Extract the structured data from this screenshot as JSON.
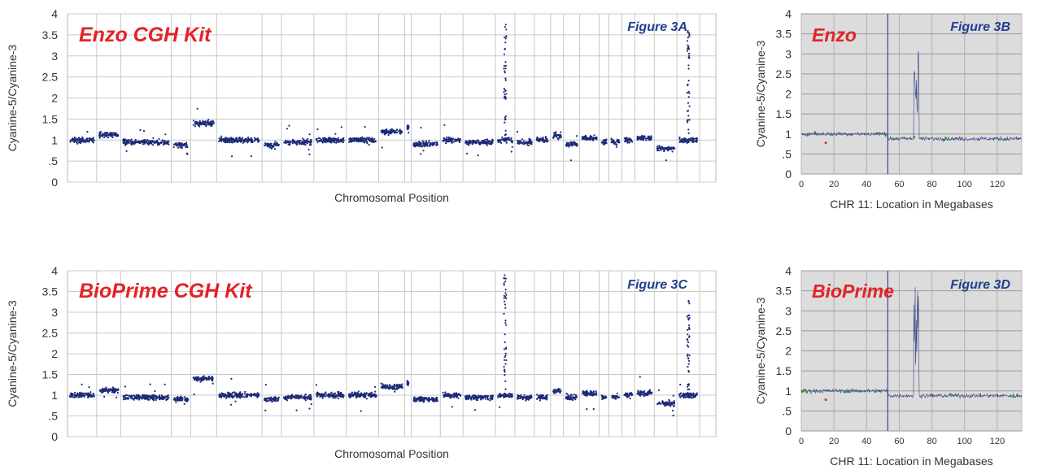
{
  "colors": {
    "points": "#1b2a78",
    "panel_title": "#e32227",
    "figure_label": "#1f3f8f",
    "grid": "#c8c8c8",
    "zoom_bg": "#dcdcdc",
    "axis_text": "#333333",
    "green_point": "#2e9a3a",
    "red_point": "#cc3333"
  },
  "chart_data": [
    {
      "id": "3A",
      "type": "scatter",
      "title": "Enzo CGH Kit",
      "figure_label": "Figure 3A",
      "xlabel": "Chromosomal Position",
      "ylabel": "Cyanine-5/Cyanine-3",
      "ylim": [
        0,
        4
      ],
      "yticks": [
        0,
        0.5,
        1,
        1.5,
        2,
        2.5,
        3,
        3.5,
        4
      ],
      "ytick_labels": [
        "0",
        ".5",
        "1",
        "1.5",
        "2",
        "2.5",
        "3",
        "3.5",
        "4"
      ],
      "grid": true,
      "chromosome_segments": [
        {
          "index": 1,
          "mean": 1.0
        },
        {
          "index": 2,
          "mean": 1.12
        },
        {
          "index": 3,
          "mean": 0.95
        },
        {
          "index": 4,
          "mean": 0.88
        },
        {
          "index": 5,
          "mean": 1.4
        },
        {
          "index": 6,
          "mean": 1.0
        },
        {
          "index": 7,
          "mean": 0.87
        },
        {
          "index": 8,
          "mean": 0.95
        },
        {
          "index": 9,
          "mean": 1.0
        },
        {
          "index": 10,
          "mean": 1.0
        },
        {
          "index": 11,
          "mean": 1.2
        },
        {
          "index": 12,
          "mean": 1.3
        },
        {
          "index": 13,
          "mean": 0.9
        },
        {
          "index": 14,
          "mean": 1.0
        },
        {
          "index": 15,
          "mean": 0.95
        },
        {
          "index": 16,
          "mean": 1.0
        },
        {
          "index": 17,
          "mean": 0.95
        },
        {
          "index": 18,
          "mean": 1.0
        },
        {
          "index": 19,
          "mean": 1.1
        },
        {
          "index": 20,
          "mean": 0.9
        },
        {
          "index": 21,
          "mean": 1.05
        },
        {
          "index": 22,
          "mean": 0.95
        },
        {
          "index": 23,
          "mean": 0.95
        },
        {
          "index": 24,
          "mean": 1.0
        },
        {
          "index": 25,
          "mean": 1.05
        },
        {
          "index": 26,
          "mean": 0.8
        },
        {
          "index": 27,
          "mean": 1.0
        }
      ],
      "amplified_peaks": [
        {
          "segment": 16,
          "max": 3.8
        },
        {
          "segment": 27,
          "max": 3.6
        }
      ]
    },
    {
      "id": "3B",
      "type": "scatter",
      "title": "Enzo",
      "figure_label": "Figure 3B",
      "xlabel": "CHR 11: Location in Megabases",
      "ylabel": "Cyanine-5/Cyanine-3",
      "ylim": [
        0,
        4
      ],
      "xlim": [
        0,
        135
      ],
      "xticks": [
        0,
        20,
        40,
        60,
        80,
        100,
        120
      ],
      "yticks": [
        0,
        0.5,
        1,
        1.5,
        2,
        2.5,
        3,
        3.5,
        4
      ],
      "ytick_labels": [
        "0",
        ".5",
        "1",
        "1.5",
        "2",
        "2.5",
        "3",
        "3.5",
        "4"
      ],
      "grid": true,
      "baseline_left": 1.0,
      "baseline_right": 0.88,
      "centromere_mb": 53,
      "amplicon": {
        "start_mb": 69,
        "end_mb": 72,
        "peak": 3.5
      }
    },
    {
      "id": "3C",
      "type": "scatter",
      "title": "BioPrime CGH Kit",
      "figure_label": "Figure 3C",
      "xlabel": "Chromosomal Position",
      "ylabel": "Cyanine-5/Cyanine-3",
      "ylim": [
        0,
        4
      ],
      "yticks": [
        0,
        0.5,
        1,
        1.5,
        2,
        2.5,
        3,
        3.5,
        4
      ],
      "ytick_labels": [
        "0",
        ".5",
        "1",
        "1.5",
        "2",
        "2.5",
        "3",
        "3.5",
        "4"
      ],
      "grid": true,
      "chromosome_segments": [
        {
          "index": 1,
          "mean": 1.0
        },
        {
          "index": 2,
          "mean": 1.12
        },
        {
          "index": 3,
          "mean": 0.95
        },
        {
          "index": 4,
          "mean": 0.9
        },
        {
          "index": 5,
          "mean": 1.4
        },
        {
          "index": 6,
          "mean": 1.0
        },
        {
          "index": 7,
          "mean": 0.9
        },
        {
          "index": 8,
          "mean": 0.95
        },
        {
          "index": 9,
          "mean": 1.0
        },
        {
          "index": 10,
          "mean": 1.0
        },
        {
          "index": 11,
          "mean": 1.2
        },
        {
          "index": 12,
          "mean": 1.3
        },
        {
          "index": 13,
          "mean": 0.9
        },
        {
          "index": 14,
          "mean": 1.0
        },
        {
          "index": 15,
          "mean": 0.95
        },
        {
          "index": 16,
          "mean": 1.0
        },
        {
          "index": 17,
          "mean": 0.95
        },
        {
          "index": 18,
          "mean": 0.95
        },
        {
          "index": 19,
          "mean": 1.1
        },
        {
          "index": 20,
          "mean": 0.95
        },
        {
          "index": 21,
          "mean": 1.05
        },
        {
          "index": 22,
          "mean": 0.95
        },
        {
          "index": 23,
          "mean": 0.95
        },
        {
          "index": 24,
          "mean": 1.0
        },
        {
          "index": 25,
          "mean": 1.05
        },
        {
          "index": 26,
          "mean": 0.8
        },
        {
          "index": 27,
          "mean": 1.0
        }
      ],
      "amplified_peaks": [
        {
          "segment": 16,
          "max": 3.9
        },
        {
          "segment": 27,
          "max": 3.3
        }
      ]
    },
    {
      "id": "3D",
      "type": "scatter",
      "title": "BioPrime",
      "figure_label": "Figure 3D",
      "xlabel": "CHR 11: Location in Megabases",
      "ylabel": "Cyanine-5/Cyanine-3",
      "ylim": [
        0,
        4
      ],
      "xlim": [
        0,
        135
      ],
      "xticks": [
        0,
        20,
        40,
        60,
        80,
        100,
        120
      ],
      "yticks": [
        0,
        0.5,
        1,
        1.5,
        2,
        2.5,
        3,
        3.5,
        4
      ],
      "ytick_labels": [
        "0",
        ".5",
        "1",
        "1.5",
        "2",
        "2.5",
        "3",
        "3.5",
        "4"
      ],
      "grid": true,
      "baseline_left": 1.0,
      "baseline_right": 0.88,
      "centromere_mb": 53,
      "amplicon": {
        "start_mb": 69,
        "end_mb": 72,
        "peak": 3.6
      }
    }
  ]
}
